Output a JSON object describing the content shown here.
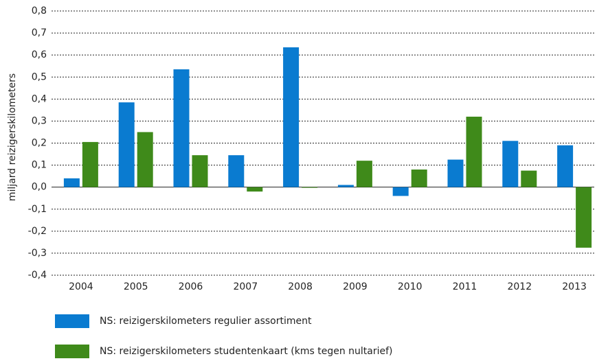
{
  "chart_data": {
    "type": "bar",
    "y_label": "miljard reizigerskilometers",
    "categories": [
      "2004",
      "2005",
      "2006",
      "2007",
      "2008",
      "2009",
      "2010",
      "2011",
      "2012",
      "2013"
    ],
    "series": [
      {
        "name": "NS: reizigerskilometers regulier assortiment",
        "color": "#0a7bd0",
        "values": [
          0.04,
          0.385,
          0.535,
          0.145,
          0.635,
          0.01,
          -0.04,
          0.125,
          0.21,
          0.19
        ]
      },
      {
        "name": "NS: reizigerskilometers studentenkaart (kms tegen nultarief)",
        "color": "#3f8a1a",
        "values": [
          0.205,
          0.25,
          0.145,
          -0.02,
          -0.003,
          0.12,
          0.08,
          0.32,
          0.075,
          -0.275
        ]
      }
    ],
    "ylim": [
      -0.4,
      0.8
    ],
    "yticks": [
      {
        "value": -0.4,
        "label": "-0,4"
      },
      {
        "value": -0.3,
        "label": "-0,3"
      },
      {
        "value": -0.2,
        "label": "-0,2"
      },
      {
        "value": -0.1,
        "label": "-0,1"
      },
      {
        "value": 0,
        "label": "0,0"
      },
      {
        "value": 0.1,
        "label": "0,1"
      },
      {
        "value": 0.2,
        "label": "0,2"
      },
      {
        "value": 0.3,
        "label": "0,3"
      },
      {
        "value": 0.4,
        "label": "0,4"
      },
      {
        "value": 0.5,
        "label": "0,5"
      },
      {
        "value": 0.6,
        "label": "0,6"
      },
      {
        "value": 0.7,
        "label": "0,7"
      },
      {
        "value": 0.8,
        "label": "0,8"
      }
    ],
    "grid": true,
    "legend": "bottom"
  }
}
